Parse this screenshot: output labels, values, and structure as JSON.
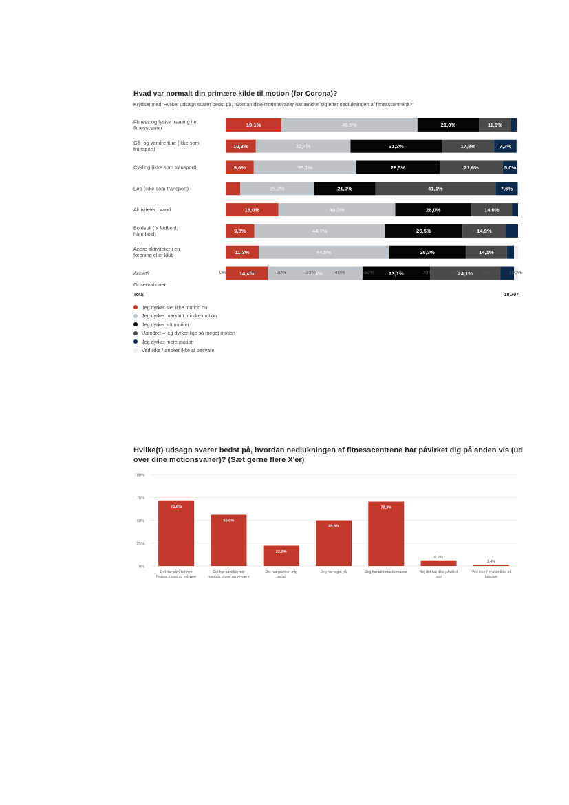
{
  "chart_data": [
    {
      "type": "bar",
      "orientation": "horizontal",
      "stacked": true,
      "title": "Hvad var normalt din primære kilde til motion (før Corona)?",
      "subtitle": "Krydset med 'Hvilket udsagn svarer bedst på, hvordan dine motionsvaner har ændret sig efter nedlukningen af fitnesscentrene?'",
      "categories": [
        "Fitness og fysisk træning i et fitnesscenter",
        "Gå- og vandre ture (ikke som transport)",
        "Cykling (ikke som transport)",
        "Løb (ikke som transport)",
        "Aktiviteter i vand",
        "Boldspil (fx fodbold, håndbold)",
        "Andre aktiviteter i en forening eller klub",
        "Andet?"
      ],
      "series": [
        {
          "name": "Jeg dyrker slet ikke motion nu",
          "color": "#c0392b",
          "values": [
            19.1,
            10.3,
            9.6,
            5.0,
            18.0,
            9.8,
            11.3,
            14.4
          ],
          "labels": [
            "19,1%",
            "10,3%",
            "9,6%",
            "",
            "18,0%",
            "9,8%",
            "11,3%",
            "14,4%"
          ]
        },
        {
          "name": "Jeg dyrker markant mindre motion",
          "color": "#bdc3c7",
          "values": [
            46.5,
            32.4,
            35.1,
            25.2,
            40.0,
            44.7,
            44.5,
            32.4
          ],
          "labels": [
            "46,5%",
            "32,4%",
            "35,1%",
            "25,2%",
            "40,0%",
            "44,7%",
            "44,5%",
            "32,4%"
          ]
        },
        {
          "name": "Jeg dyrker lidt motion",
          "color": "#050505",
          "values": [
            21.0,
            31.3,
            28.5,
            21.0,
            26.0,
            26.5,
            26.3,
            23.1
          ],
          "labels": [
            "21,0%",
            "31,3%",
            "28,5%",
            "21,0%",
            "26,0%",
            "26,5%",
            "26,3%",
            "23,1%"
          ]
        },
        {
          "name": "Uændret – jeg dyrker lige så meget motion",
          "color": "#4a4a4a",
          "values": [
            11.0,
            17.8,
            21.6,
            41.1,
            14.0,
            14.9,
            14.1,
            24.1
          ],
          "labels": [
            "11,0%",
            "17,8%",
            "21,6%",
            "41,1%",
            "14,0%",
            "14,9%",
            "14,1%",
            "24,1%"
          ]
        },
        {
          "name": "Jeg dyrker mere motion",
          "color": "#0d2a4d",
          "values": [
            2.0,
            7.7,
            5.0,
            7.6,
            2.0,
            4.1,
            2.4,
            4.6
          ],
          "labels": [
            "",
            "7,7%",
            "5,0%",
            "7,6%",
            "",
            "",
            "",
            ""
          ]
        },
        {
          "name": "Ved ikke / ønsker ikke at besvare",
          "color": "#eceff1",
          "values": [
            0.4,
            0.5,
            0.2,
            0.1,
            0.0,
            0.0,
            1.4,
            1.4
          ],
          "labels": [
            "",
            "",
            "",
            "",
            "",
            "",
            "",
            ""
          ]
        }
      ],
      "xticks": [
        "0%",
        "10%",
        "20%",
        "30%",
        "40%",
        "50%",
        "60%",
        "70%",
        "80%",
        "90%",
        "100%"
      ],
      "xlim": [
        0,
        100
      ],
      "observations_label": "Observationer",
      "total_label": "Total",
      "total_value": "18.707",
      "legend_position": "bottom-left"
    },
    {
      "type": "bar",
      "title": "Hvilke(t) udsagn svarer bedst på, hvordan nedlukningen af fitnesscentrene har påvirket dig på anden vis (ud over dine motionsvaner)? (Sæt gerne flere X'er)",
      "categories": [
        [
          "Det har påvirket min",
          "fysiske trivsel og velvære"
        ],
        [
          "Det har påvirket min",
          "mentale trivsel og velvære"
        ],
        [
          "Det har påvirket mig",
          "socialt"
        ],
        [
          "Jeg har taget på"
        ],
        [
          "Jeg har tabt muskelmasse"
        ],
        [
          "Nej det har ikke påvirket",
          "mig"
        ],
        [
          "Ved ikke / ønsker ikke at",
          "besvare"
        ]
      ],
      "values": [
        71.6,
        56.0,
        22.2,
        49.9,
        70.3,
        6.2,
        1.4
      ],
      "labels": [
        "71,6%",
        "56,0%",
        "22,2%",
        "49,9%",
        "70,3%",
        "6,2%",
        "1,4%"
      ],
      "color": "#c0392b",
      "yticks": [
        "100%",
        "75%",
        "50%",
        "25%",
        "0%"
      ],
      "ylim": [
        0,
        100
      ],
      "grid": true
    }
  ]
}
